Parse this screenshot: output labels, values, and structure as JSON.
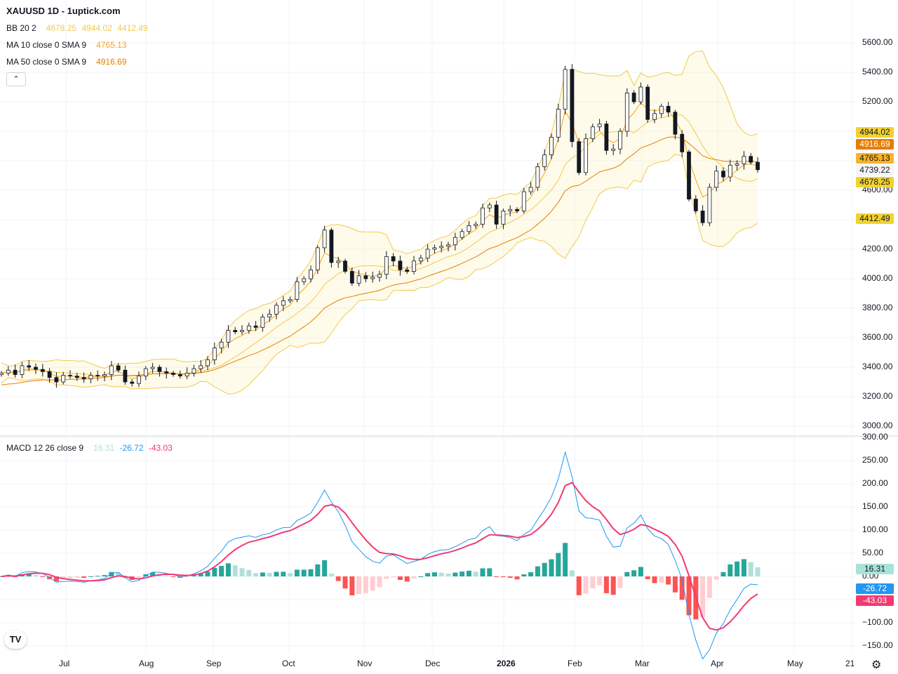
{
  "header": {
    "title": "XAUUSD 1D - 1uptick.com"
  },
  "legend": {
    "bb": {
      "label": "BB 20 2",
      "basis": "4678.25",
      "upper": "4944.02",
      "lower": "4412.49"
    },
    "ma10": {
      "label": "MA 10 close 0 SMA 9",
      "value": "4765.13"
    },
    "ma50": {
      "label": "MA 50 close 0 SMA 9",
      "value": "4916.69"
    },
    "macd": {
      "label": "MACD 12 26 close 9",
      "hist": "16.31",
      "macd": "-26.72",
      "signal": "-43.03"
    },
    "collapse_icon": "chevron-up-icon"
  },
  "price_tags": {
    "upper": "4944.02",
    "ma50": "4916.69",
    "ma10": "4765.13",
    "last": "4739.22",
    "basis": "4678.25",
    "lower": "4412.49",
    "hist": "16.31",
    "macd": "-26.72",
    "signal": "-43.03"
  },
  "colors": {
    "bb": "#f2c94c",
    "ma10": "#f7a21b",
    "ma50": "#e67e00",
    "macd": "#2196f3",
    "signal": "#f23a72",
    "hist_up": "#26a69a",
    "hist_up_light": "#b2dfdb",
    "hist_dn": "#ff5252",
    "hist_dn_light": "#ffcdd2"
  },
  "chart_data": {
    "type": "candlestick",
    "symbol": "XAUUSD",
    "interval": "1D",
    "price_axis": {
      "ticks": [
        "5600.00",
        "5400.00",
        "5200.00",
        "4600.00",
        "4200.00",
        "4000.00",
        "3800.00",
        "3600.00",
        "3400.00",
        "3200.00",
        "3000.00"
      ],
      "ylim": [
        2980,
        5660
      ]
    },
    "macd_axis": {
      "ticks": [
        "300.00",
        "250.00",
        "200.00",
        "150.00",
        "100.00",
        "50.00",
        "0.00",
        "−100.00",
        "−150.00"
      ],
      "ylim": [
        -165,
        300
      ]
    },
    "x_axis": {
      "ticks": [
        "Jul",
        "Aug",
        "Sep",
        "Oct",
        "Nov",
        "Dec",
        "2026",
        "Feb",
        "Mar",
        "Apr",
        "May",
        "21"
      ]
    },
    "closes": [
      3360,
      3380,
      3350,
      3410,
      3400,
      3385,
      3370,
      3330,
      3300,
      3345,
      3340,
      3330,
      3320,
      3345,
      3340,
      3350,
      3410,
      3380,
      3300,
      3290,
      3340,
      3390,
      3400,
      3370,
      3360,
      3350,
      3340,
      3360,
      3390,
      3410,
      3450,
      3530,
      3570,
      3650,
      3640,
      3650,
      3680,
      3670,
      3740,
      3760,
      3820,
      3850,
      3860,
      3980,
      4000,
      4060,
      4210,
      4330,
      4110,
      4120,
      4050,
      3970,
      4020,
      4000,
      4010,
      4030,
      4150,
      4120,
      4060,
      4050,
      4120,
      4140,
      4200,
      4210,
      4220,
      4230,
      4280,
      4320,
      4360,
      4370,
      4480,
      4500,
      4370,
      4460,
      4470,
      4460,
      4590,
      4620,
      4760,
      4840,
      4960,
      5150,
      5420,
      4930,
      4720,
      4950,
      5030,
      5050,
      4870,
      4880,
      5000,
      5260,
      5200,
      5300,
      5080,
      5120,
      5170,
      5130,
      4980,
      4860,
      4540,
      4460,
      4380,
      4620,
      4730,
      4690,
      4770,
      4780,
      4830,
      4790,
      4739.22
    ],
    "grid": true
  },
  "branding": {
    "logo": "TV"
  },
  "settings_icon": "gear-icon"
}
